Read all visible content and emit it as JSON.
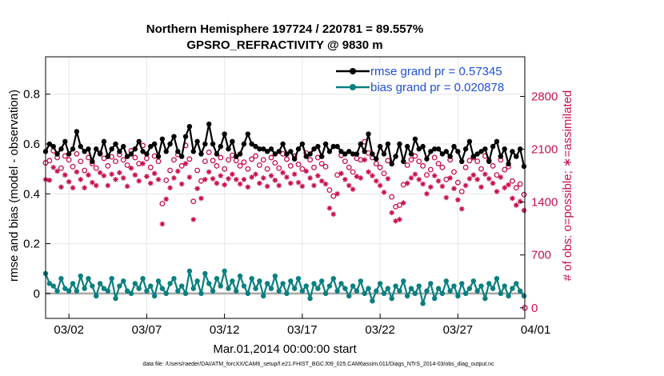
{
  "chart_data": {
    "type": "line",
    "title": "Northern Hemisphere 197724 / 220781 = 89.557%",
    "subtitle": "GPSRO_REFRACTIVITY @ 9830 m",
    "xlabel": "Mar.01,2014 00:00:00 start",
    "ylabel": "rmse and bias (model - observation)",
    "y2label": "# of obs: o=possible; ∗=assimilated",
    "footnote": "data file: /Users/raeder/DAI/ATM_forcXX/CAM6_setup/f.e21.FHIST_BGC.f09_025.CAM6assim.011/Diags_NTrS_2014-03/obs_diag_output.nc",
    "xlim": [
      0.5,
      31.3
    ],
    "ylim": [
      -0.1,
      0.95
    ],
    "y2lim": [
      -140,
      3325
    ],
    "x_ticks": [
      {
        "v": 2,
        "label": "03/02"
      },
      {
        "v": 7,
        "label": "03/07"
      },
      {
        "v": 12,
        "label": "03/12"
      },
      {
        "v": 17,
        "label": "03/17"
      },
      {
        "v": 22,
        "label": "03/22"
      },
      {
        "v": 27,
        "label": "03/27"
      },
      {
        "v": 32,
        "label": "04/01"
      }
    ],
    "y_ticks": [
      {
        "v": 0,
        "label": "0"
      },
      {
        "v": 0.2,
        "label": "0.2"
      },
      {
        "v": 0.4,
        "label": "0.4"
      },
      {
        "v": 0.6,
        "label": "0.6"
      },
      {
        "v": 0.8,
        "label": "0.8"
      }
    ],
    "y2_ticks": [
      {
        "v": 0,
        "label": "0"
      },
      {
        "v": 700,
        "label": "700"
      },
      {
        "v": 1400,
        "label": "1400"
      },
      {
        "v": 2100,
        "label": "2100"
      },
      {
        "v": 2800,
        "label": "2800"
      }
    ],
    "legend": [
      {
        "label": "rmse grand pr = 0.57345",
        "color": "#000000"
      },
      {
        "label": "bias grand pr = 0.020878",
        "color": "#0a7f80"
      }
    ],
    "n_times": 124,
    "t_start": 0.5,
    "t_step": 0.25,
    "colors": {
      "rmse": "#000000",
      "bias": "#0a7f80",
      "obs": "#c8104e",
      "grid": "#e6e6e6",
      "zero": "#a8a8a8"
    },
    "rmse": [
      0.57,
      0.6,
      0.59,
      0.56,
      0.58,
      0.61,
      0.56,
      0.58,
      0.65,
      0.59,
      0.57,
      0.58,
      0.53,
      0.58,
      0.56,
      0.61,
      0.55,
      0.58,
      0.6,
      0.57,
      0.59,
      0.55,
      0.56,
      0.58,
      0.61,
      0.57,
      0.56,
      0.59,
      0.6,
      0.55,
      0.62,
      0.57,
      0.6,
      0.63,
      0.57,
      0.55,
      0.63,
      0.67,
      0.57,
      0.61,
      0.56,
      0.6,
      0.68,
      0.6,
      0.56,
      0.59,
      0.64,
      0.58,
      0.61,
      0.55,
      0.56,
      0.6,
      0.64,
      0.6,
      0.59,
      0.58,
      0.58,
      0.57,
      0.58,
      0.56,
      0.57,
      0.6,
      0.56,
      0.57,
      0.54,
      0.58,
      0.6,
      0.55,
      0.56,
      0.58,
      0.59,
      0.55,
      0.6,
      0.57,
      0.59,
      0.59,
      0.57,
      0.56,
      0.57,
      0.56,
      0.56,
      0.6,
      0.57,
      0.64,
      0.56,
      0.54,
      0.59,
      0.56,
      0.6,
      0.52,
      0.55,
      0.6,
      0.53,
      0.59,
      0.56,
      0.62,
      0.58,
      0.59,
      0.54,
      0.57,
      0.58,
      0.58,
      0.56,
      0.57,
      0.55,
      0.59,
      0.57,
      0.53,
      0.58,
      0.61,
      0.55,
      0.56,
      0.57,
      0.58,
      0.53,
      0.59,
      0.61,
      0.55,
      0.58,
      0.52,
      0.57,
      0.55,
      0.58,
      0.51
    ],
    "bias": [
      0.08,
      0.04,
      0.03,
      0.01,
      0.06,
      0.02,
      0.01,
      0.04,
      0.01,
      0.07,
      0.02,
      0.06,
      0.03,
      -0.01,
      0.04,
      0.02,
      0.01,
      0.06,
      -0.02,
      0.03,
      0.05,
      0.01,
      0.0,
      0.04,
      0.02,
      0.06,
      0.01,
      0.03,
      -0.01,
      0.05,
      0.02,
      0.0,
      0.04,
      0.06,
      0.01,
      0.03,
      0.0,
      0.09,
      0.02,
      0.05,
      0.0,
      0.08,
      0.04,
      0.01,
      0.06,
      0.03,
      0.09,
      0.02,
      0.05,
      0.01,
      0.07,
      0.03,
      0.0,
      0.06,
      0.02,
      0.05,
      -0.01,
      0.04,
      0.02,
      0.07,
      0.01,
      0.04,
      0.0,
      0.05,
      0.02,
      0.06,
      0.01,
      0.03,
      -0.02,
      0.04,
      0.02,
      0.05,
      0.0,
      0.03,
      0.06,
      0.01,
      0.04,
      0.02,
      -0.01,
      0.03,
      0.01,
      0.05,
      0.0,
      0.02,
      -0.03,
      0.01,
      0.04,
      0.0,
      0.02,
      -0.02,
      0.03,
      0.01,
      0.05,
      -0.01,
      0.02,
      0.0,
      0.03,
      -0.04,
      0.01,
      0.04,
      -0.02,
      0.02,
      0.0,
      0.05,
      0.01,
      0.03,
      -0.01,
      0.04,
      0.0,
      0.02,
      0.05,
      0.01,
      0.03,
      -0.02,
      0.04,
      0.02,
      0.06,
      0.0,
      0.03,
      -0.01,
      0.02,
      0.04,
      0.01,
      -0.01
    ],
    "possible": [
      1920,
      1950,
      2080,
      1990,
      1850,
      2010,
      1960,
      1870,
      2040,
      1940,
      1820,
      1990,
      1910,
      1850,
      2050,
      1980,
      1880,
      2000,
      1940,
      2030,
      1960,
      1890,
      2080,
      1990,
      1910,
      2150,
      1980,
      1860,
      2010,
      1940,
      1380,
      1690,
      1820,
      1960,
      2030,
      1880,
      2150,
      1970,
      1410,
      1820,
      1680,
      1940,
      2060,
      1950,
      1880,
      1990,
      1840,
      1960,
      2020,
      1950,
      1880,
      1930,
      1840,
      1970,
      2010,
      1890,
      1960,
      1840,
      1990,
      1920,
      1850,
      2040,
      1970,
      1880,
      2010,
      1900,
      1840,
      2050,
      1960,
      1860,
      1990,
      1910,
      1870,
      1560,
      1480,
      1760,
      2020,
      1940,
      1860,
      1800,
      1980,
      1960,
      2200,
      2050,
      1990,
      1910,
      1860,
      1780,
      1950,
      1470,
      1340,
      1360,
      1630,
      1890,
      1960,
      2010,
      1940,
      1880,
      1760,
      1830,
      1990,
      1910,
      1860,
      1700,
      1960,
      1800,
      1660,
      1540,
      1860,
      1950,
      1990,
      1940,
      1840,
      2010,
      1950,
      1880,
      1760,
      1960,
      1830,
      1870,
      1680,
      1590,
      1640,
      1500
    ],
    "assimilated": [
      1700,
      1690,
      1860,
      1810,
      1600,
      1760,
      1670,
      1590,
      1800,
      1700,
      1590,
      1760,
      1660,
      1620,
      1790,
      1750,
      1620,
      1770,
      1700,
      1790,
      1720,
      1610,
      1850,
      1760,
      1680,
      1910,
      1740,
      1650,
      1780,
      1700,
      1110,
      1440,
      1590,
      1720,
      1810,
      1640,
      1910,
      1730,
      1170,
      1580,
      1450,
      1700,
      1800,
      1710,
      1650,
      1750,
      1630,
      1710,
      1770,
      1700,
      1640,
      1700,
      1600,
      1730,
      1770,
      1650,
      1720,
      1610,
      1750,
      1690,
      1620,
      1790,
      1730,
      1650,
      1770,
      1660,
      1610,
      1810,
      1720,
      1620,
      1750,
      1680,
      1640,
      1320,
      1240,
      1510,
      1780,
      1700,
      1620,
      1570,
      1740,
      1720,
      1960,
      1800,
      1750,
      1680,
      1620,
      1530,
      1710,
      1260,
      1150,
      1170,
      1390,
      1650,
      1720,
      1770,
      1700,
      1640,
      1510,
      1600,
      1750,
      1680,
      1610,
      1460,
      1720,
      1580,
      1430,
      1310,
      1620,
      1710,
      1760,
      1700,
      1600,
      1770,
      1710,
      1650,
      1540,
      1730,
      1590,
      1630,
      1450,
      1360,
      1410,
      1290
    ]
  }
}
